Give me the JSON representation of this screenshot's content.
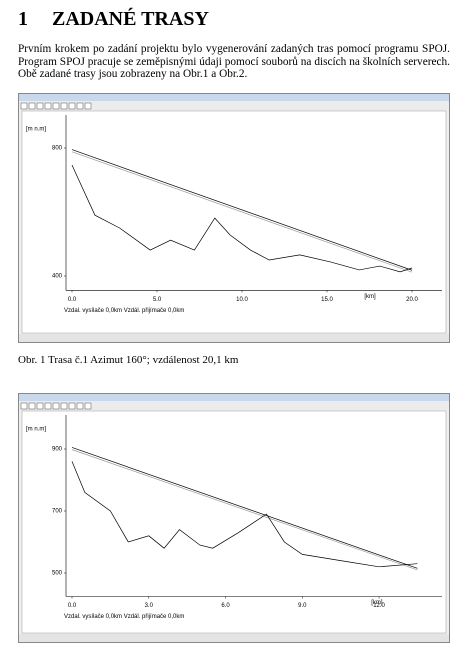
{
  "heading": {
    "number": "1",
    "title": "ZADANÉ TRASY"
  },
  "paragraph": "Prvním krokem po zadání projektu bylo vygenerování zadaných tras pomocí programu SPOJ. Program SPOJ pracuje se zeměpisnými údaji pomocí souborů na discích na školních serverech. Obě zadané trasy jsou zobrazeny na Obr.1 a Obr.2.",
  "figures": [
    {
      "chart": {
        "type": "line",
        "y_label": "[m n.m]",
        "x_label": "[km]",
        "xlim": [
          0,
          20
        ],
        "ylim": [
          380,
          830
        ],
        "xticks": [
          {
            "value": 0,
            "label": "0.0"
          },
          {
            "value": 5,
            "label": "5.0"
          },
          {
            "value": 10,
            "label": "10.0"
          },
          {
            "value": 15,
            "label": "15.0"
          },
          {
            "value": 20,
            "label": "20.0"
          }
        ],
        "yticks": [
          400,
          800
        ],
        "series": [
          {
            "color": "#000000",
            "x": [
              0,
              20
            ],
            "values": [
              795,
              418
            ]
          },
          {
            "color": "#9a9a9a",
            "x": [
              0,
              20
            ],
            "values": [
              788,
              412
            ]
          },
          {
            "color": "#000000",
            "x": [
              0,
              0.4,
              1.35,
              2.8,
              4.6,
              5.8,
              7.2,
              8.4,
              9.3,
              10.5,
              11.6,
              13.4,
              15.2,
              16.9,
              18.1,
              19.3,
              20
            ],
            "values": [
              747,
              700,
              590,
              550,
              481,
              512,
              481,
              581,
              528,
              481,
              450,
              466,
              444,
              419,
              431,
              413,
              425
            ]
          }
        ]
      },
      "status": "Vzdal. vysílače 0,0km  Vzdál. přijímače 0,0km",
      "caption": "Obr. 1 Trasa č.1 Azimut 160°; vzdálenost 20,1 km"
    },
    {
      "chart": {
        "type": "line",
        "y_label": "[m n.m]",
        "x_label": "[km]",
        "xlim": [
          0,
          13.6
        ],
        "ylim": [
          450,
          950
        ],
        "xticks": [
          {
            "value": 0,
            "label": "0.0"
          },
          {
            "value": 3,
            "label": "3.0"
          },
          {
            "value": 6,
            "label": "6.0"
          },
          {
            "value": 9,
            "label": "9.0"
          },
          {
            "value": 12,
            "label": "12.0"
          }
        ],
        "yticks": [
          500,
          700,
          900
        ],
        "series": [
          {
            "color": "#000000",
            "x": [
              0,
              13.5
            ],
            "values": [
              905,
              515
            ]
          },
          {
            "color": "#9a9a9a",
            "x": [
              0,
              13.5
            ],
            "values": [
              898,
              510
            ]
          },
          {
            "color": "#000000",
            "x": [
              0,
              0.5,
              1.5,
              2.2,
              3,
              3.6,
              4.2,
              5,
              5.5,
              6.5,
              7.6,
              8.3,
              9,
              10.5,
              12,
              13.5
            ],
            "values": [
              860,
              760,
              700,
              600,
              620,
              580,
              640,
              590,
              580,
              630,
              690,
              600,
              560,
              540,
              520,
              530
            ]
          }
        ]
      },
      "status": "Vzdal. vysílače 0,0km  Vzdál. přijímače 0,0km"
    }
  ]
}
